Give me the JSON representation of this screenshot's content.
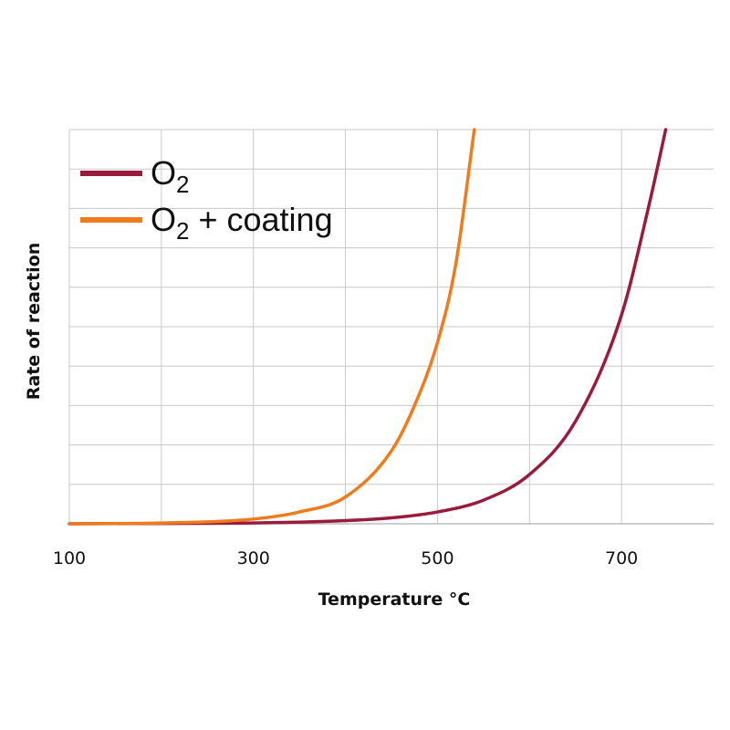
{
  "chart_data": {
    "type": "line",
    "xlabel": "Temperature °C",
    "ylabel": "Rate of reaction",
    "xlim": [
      100,
      800
    ],
    "ylim": [
      0,
      10
    ],
    "x_ticks": [
      100,
      300,
      500,
      700
    ],
    "y_ticks_shown": false,
    "grid": true,
    "legend_position": "top-left",
    "series": [
      {
        "name_base": "O",
        "name_sub": "2",
        "name_suffix": "",
        "color": "#9a1c3c",
        "x": [
          100,
          300,
          400,
          450,
          500,
          550,
          600,
          650,
          700,
          730,
          748
        ],
        "y": [
          0,
          0.02,
          0.08,
          0.15,
          0.3,
          0.6,
          1.25,
          2.6,
          5.3,
          8.1,
          10
        ]
      },
      {
        "name_base": "O",
        "name_sub": "2",
        "name_suffix": " + coating",
        "color": "#ee7b1e",
        "x": [
          100,
          200,
          300,
          350,
          400,
          450,
          475,
          500,
          520,
          540
        ],
        "y": [
          0,
          0.02,
          0.12,
          0.3,
          0.68,
          1.85,
          3.0,
          4.6,
          6.6,
          10
        ]
      }
    ]
  }
}
